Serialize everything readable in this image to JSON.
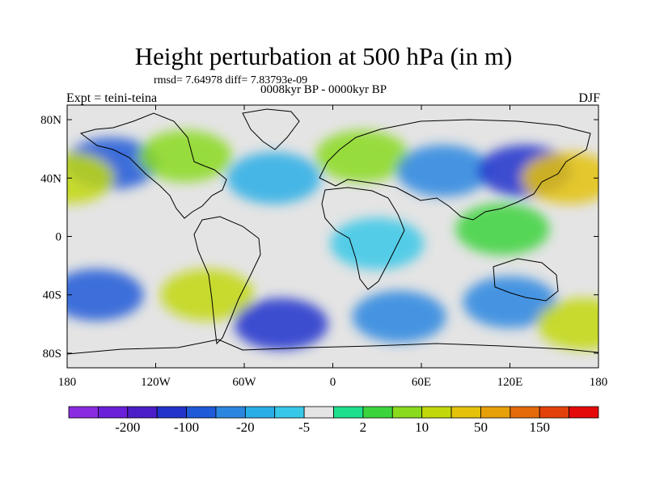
{
  "chart_data": {
    "type": "heatmap",
    "title": "Height perturbation at 500 hPa (in m)",
    "stats_line": "rmsd= 7.64978  diff= 7.83793e-09",
    "period": "0008kyr BP - 0000kyr BP",
    "left_label": "Expt = teini-teina",
    "right_label": "DJF",
    "xlim": [
      -180,
      180
    ],
    "ylim": [
      -90,
      90
    ],
    "x_ticks": [
      {
        "value": -180,
        "label": "180"
      },
      {
        "value": -120,
        "label": "120W"
      },
      {
        "value": -60,
        "label": "60W"
      },
      {
        "value": 0,
        "label": "0"
      },
      {
        "value": 60,
        "label": "60E"
      },
      {
        "value": 120,
        "label": "120E"
      },
      {
        "value": 180,
        "label": "180"
      }
    ],
    "y_ticks": [
      {
        "value": 80,
        "label": "80N"
      },
      {
        "value": 40,
        "label": "40N"
      },
      {
        "value": 0,
        "label": "0"
      },
      {
        "value": -40,
        "label": "40S"
      },
      {
        "value": -80,
        "label": "80S"
      }
    ],
    "colorbar": {
      "colors": [
        "#8a2be2",
        "#6a1fd8",
        "#4b1ec8",
        "#2233cc",
        "#1f5ad8",
        "#2b86e0",
        "#2aaee6",
        "#38c8e8",
        "#e4e4e4",
        "#1ee08c",
        "#3cd43c",
        "#8ada1e",
        "#c2d80a",
        "#e4c20a",
        "#e8a00a",
        "#e46a0a",
        "#e2420a",
        "#e40a0a"
      ],
      "labels": [
        {
          "after_box": 1,
          "text": "-200"
        },
        {
          "after_box": 3,
          "text": "-100"
        },
        {
          "after_box": 5,
          "text": "-20"
        },
        {
          "after_box": 7,
          "text": "-5"
        },
        {
          "after_box": 9,
          "text": "2"
        },
        {
          "after_box": 11,
          "text": "10"
        },
        {
          "after_box": 13,
          "text": "50"
        },
        {
          "after_box": 15,
          "text": "150"
        }
      ]
    },
    "anomalies": [
      {
        "lon": -150,
        "lat": 50,
        "level": 4
      },
      {
        "lon": 20,
        "lat": 55,
        "level": 11
      },
      {
        "lon": -100,
        "lat": 55,
        "level": 11
      },
      {
        "lon": 75,
        "lat": 45,
        "level": 5
      },
      {
        "lon": 130,
        "lat": 45,
        "level": 3
      },
      {
        "lon": 160,
        "lat": 40,
        "level": 13
      },
      {
        "lon": -180,
        "lat": 40,
        "level": 12
      },
      {
        "lon": -40,
        "lat": 40,
        "level": 6
      },
      {
        "lon": -160,
        "lat": -40,
        "level": 4
      },
      {
        "lon": -85,
        "lat": -40,
        "level": 12
      },
      {
        "lon": -35,
        "lat": -60,
        "level": 3
      },
      {
        "lon": 45,
        "lat": -55,
        "level": 5
      },
      {
        "lon": 120,
        "lat": -45,
        "level": 5
      },
      {
        "lon": 170,
        "lat": -60,
        "level": 12
      },
      {
        "lon": 115,
        "lat": 5,
        "level": 10
      },
      {
        "lon": 30,
        "lat": -5,
        "level": 7
      }
    ]
  }
}
